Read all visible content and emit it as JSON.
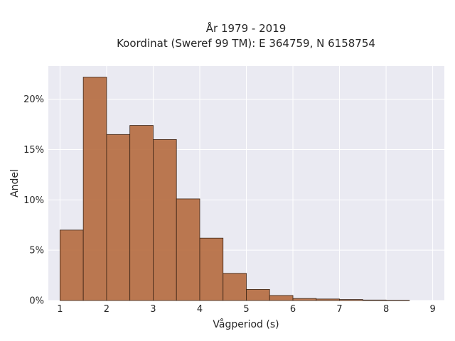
{
  "chart_data": {
    "type": "bar",
    "title": [
      "År 1979 - 2019",
      "Koordinat (Sweref 99 TM): E 364759, N 6158754"
    ],
    "xlabel": "Vågperiod (s)",
    "ylabel": "Andel",
    "xlim": [
      0.75,
      9.25
    ],
    "ylim": [
      0,
      23.3
    ],
    "xticks": [
      1,
      2,
      3,
      4,
      5,
      6,
      7,
      8,
      9
    ],
    "yticks": [
      0,
      5,
      10,
      15,
      20
    ],
    "ytick_format": "%",
    "bin_width": 0.5,
    "bins": [
      {
        "x0": 1.0,
        "value": 7.0
      },
      {
        "x0": 1.5,
        "value": 22.2
      },
      {
        "x0": 2.0,
        "value": 16.5
      },
      {
        "x0": 2.5,
        "value": 17.4
      },
      {
        "x0": 3.0,
        "value": 16.0
      },
      {
        "x0": 3.5,
        "value": 10.1
      },
      {
        "x0": 4.0,
        "value": 6.2
      },
      {
        "x0": 4.5,
        "value": 2.7
      },
      {
        "x0": 5.0,
        "value": 1.1
      },
      {
        "x0": 5.5,
        "value": 0.5
      },
      {
        "x0": 6.0,
        "value": 0.2
      },
      {
        "x0": 6.5,
        "value": 0.15
      },
      {
        "x0": 7.0,
        "value": 0.1
      },
      {
        "x0": 7.5,
        "value": 0.05
      },
      {
        "x0": 8.0,
        "value": 0.03
      }
    ],
    "grid": true,
    "legend": "none",
    "colors": {
      "bar_fill": "#b56a3e",
      "bar_stroke": "#3b2415",
      "plot_bg": "#eaeaf2",
      "grid": "#ffffff"
    }
  }
}
